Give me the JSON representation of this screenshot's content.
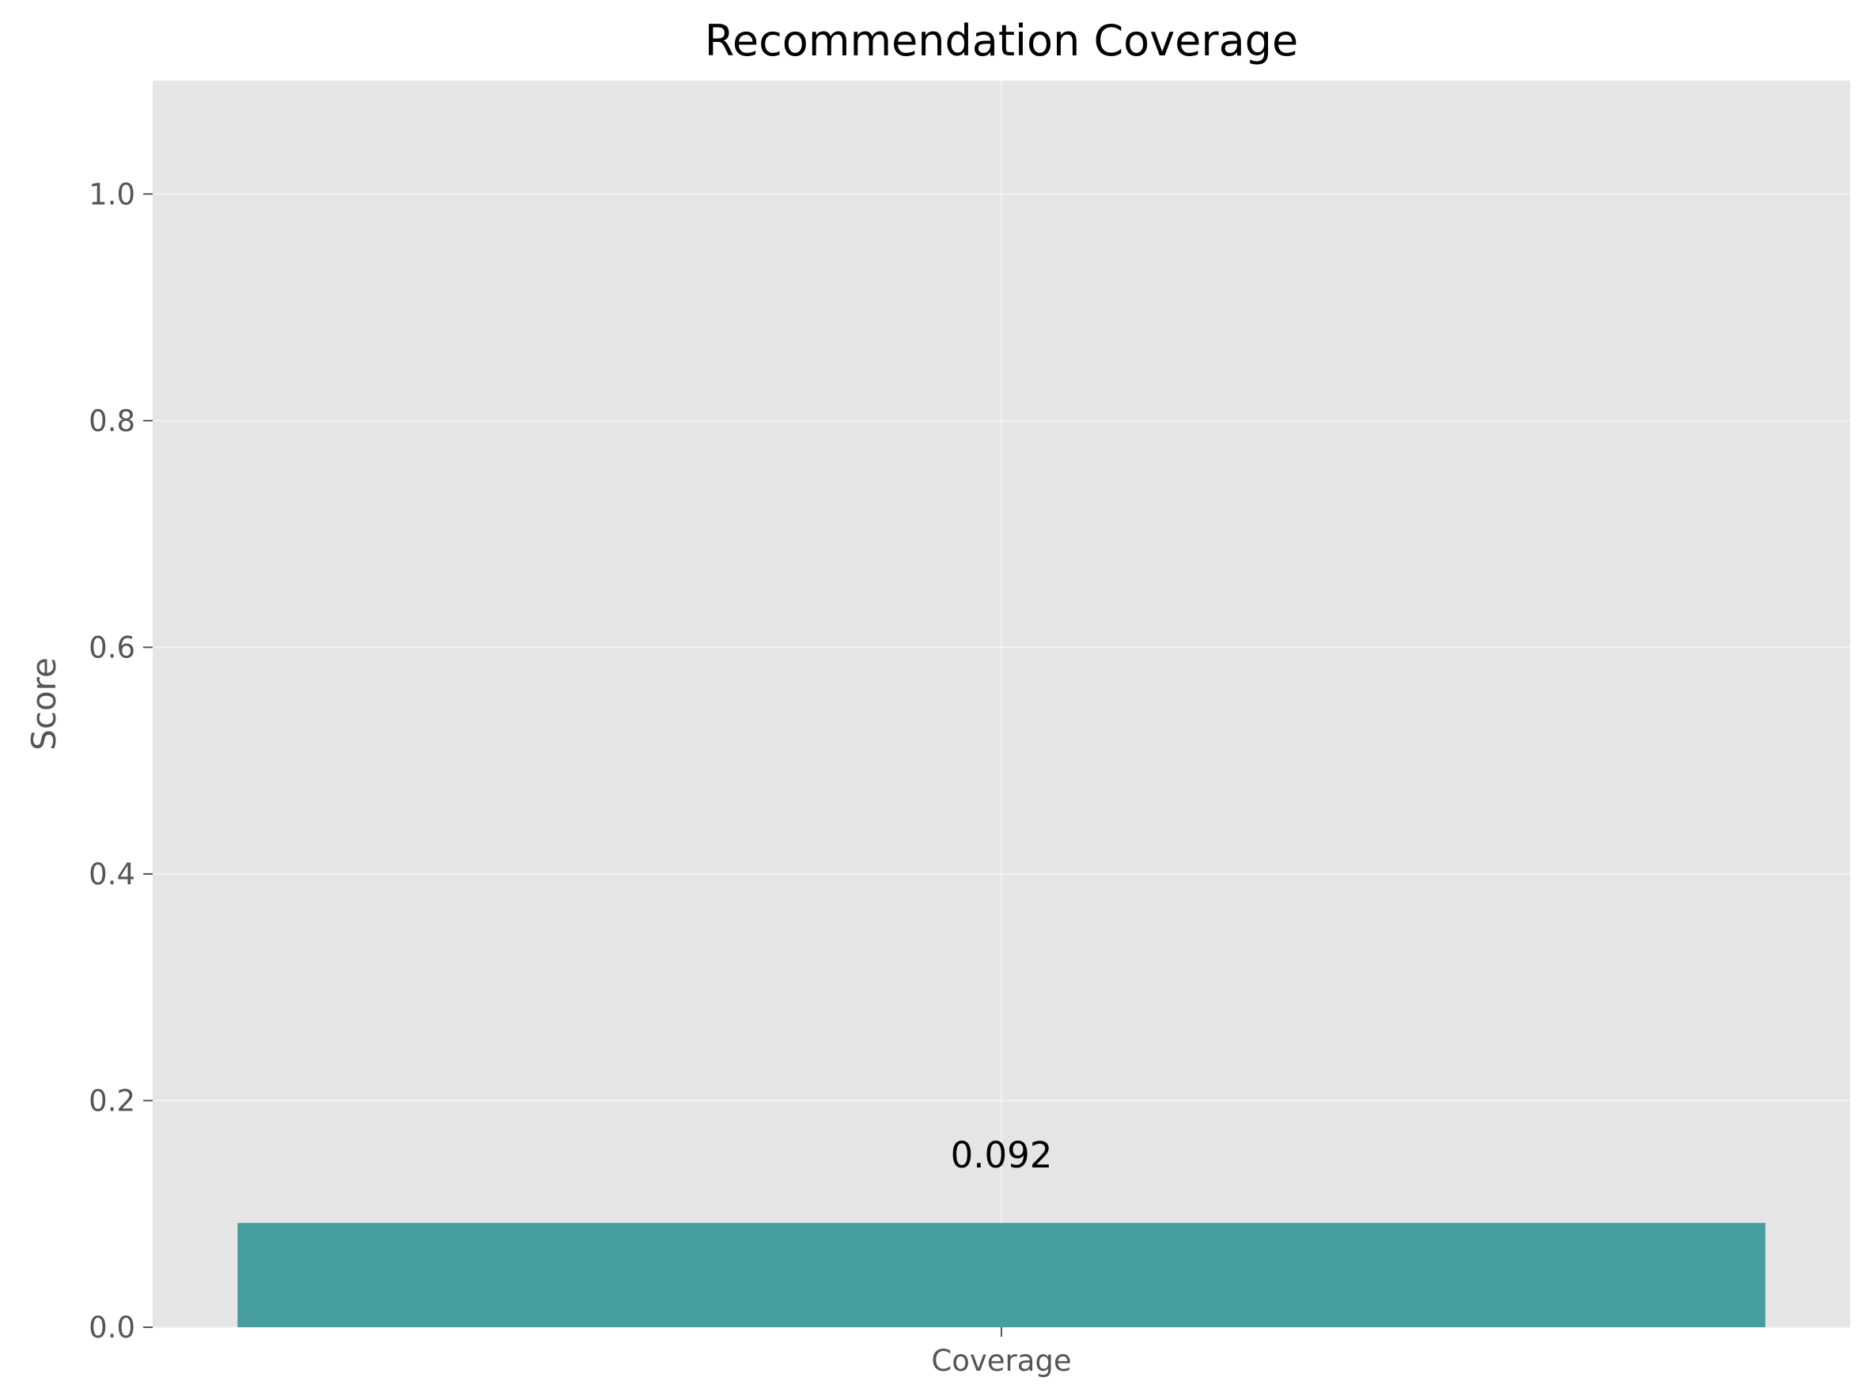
{
  "chart_data": {
    "type": "bar",
    "title": "Recommendation Coverage",
    "xlabel": "",
    "ylabel": "Score",
    "categories": [
      "Coverage"
    ],
    "values": [
      0.092
    ],
    "value_labels": [
      "0.092"
    ],
    "ylim": [
      0,
      1.1
    ],
    "yticks": [
      0.0,
      0.2,
      0.4,
      0.6,
      0.8,
      1.0
    ],
    "ytick_labels": [
      "0.0",
      "0.2",
      "0.4",
      "0.6",
      "0.8",
      "1.0"
    ],
    "grid": true,
    "legend": "none",
    "colors": {
      "bar": "#2a9090",
      "plot_background": "#e5e5e5",
      "grid": "#f2f2f2",
      "tick_text": "#555555"
    }
  }
}
